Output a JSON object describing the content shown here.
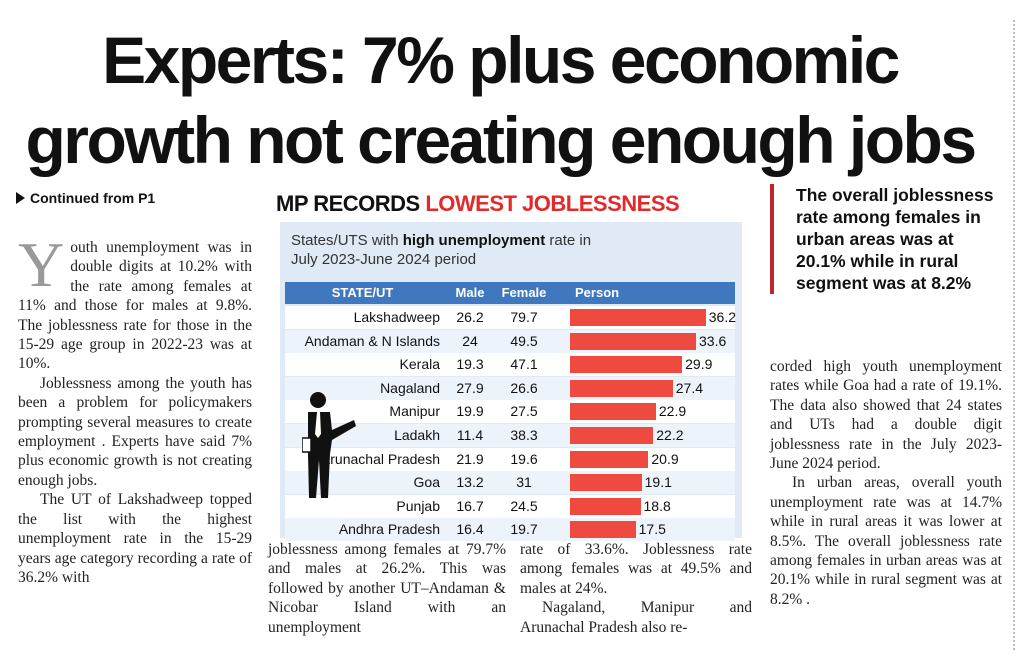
{
  "headline": {
    "line1": "Experts: 7% plus economic",
    "line2": "growth not creating enough jobs"
  },
  "continued": "Continued from P1",
  "column1": {
    "dropcap": "Y",
    "p1": "outh unemployment was in double digits at 10.2% with the rate among females at 11% and those for males at 9.8%. The joblessness rate for those in the 15-29 age group in 2022-23 was at 10%.",
    "p2": "Joblessness among the youth has been a problem for policymakers prompting several measures to create employment . Experts have said 7% plus economic growth is not creating enough jobs.",
    "p3": "The UT of Lakshadweep topped the list with the highest unemployment rate in the 15-29 years age category recording a rate of 36.2% with"
  },
  "column2": {
    "p1": "joblessness among females at 79.7% and males at 26.2%. This was followed by another UT–Andaman & Nicobar Island with an unemployment"
  },
  "column3": {
    "p1": "rate of 33.6%. Joblessness rate among females was at 49.5% and males at 24%.",
    "p2": "Nagaland, Manipur and Arunachal Pradesh also re-"
  },
  "pullquote": "The overall joblessness rate among females in urban areas was at 20.1% while in rural segment was at 8.2%",
  "column4": {
    "p1": "corded high youth unemployment rates while Goa had a rate of 19.1%. The data also showed that 24 states and UTs had a double digit joblessness rate in the July 2023-June 2024 period.",
    "p2": "In urban areas, overall youth unemployment rate was at 14.7% while in rural areas it was lower at 8.5%. The overall joblessness rate among females in urban areas was at 20.1% while in rural segment was at 8.2% ."
  },
  "infobox": {
    "title_part1": "MP RECORDS ",
    "title_part2": "LOWEST JOBLESSNESS",
    "subtitle_pre": "States/UTS with ",
    "subtitle_bold": "high unemployment",
    "subtitle_post": " rate in",
    "subtitle_line2": "July 2023-June 2024 period",
    "colors": {
      "header": "#3f78be",
      "bar": "#ef4a40",
      "title_accent": "#e12a2a",
      "panel": "#dfeaf6"
    }
  },
  "chart_data": {
    "type": "table",
    "columns": [
      "STATE/UT",
      "Male",
      "Female",
      "Person"
    ],
    "rows": [
      {
        "state": "Lakshadweep",
        "male": "26.2",
        "female": "79.7",
        "person": 36.2
      },
      {
        "state": "Andaman & N Islands",
        "male": "24",
        "female": "49.5",
        "person": 33.6
      },
      {
        "state": "Kerala",
        "male": "19.3",
        "female": "47.1",
        "person": 29.9
      },
      {
        "state": "Nagaland",
        "male": "27.9",
        "female": "26.6",
        "person": 27.4
      },
      {
        "state": "Manipur",
        "male": "19.9",
        "female": "27.5",
        "person": 22.9
      },
      {
        "state": "Ladakh",
        "male": "11.4",
        "female": "38.3",
        "person": 22.2
      },
      {
        "state": "Arunachal Pradesh",
        "male": "21.9",
        "female": "19.6",
        "person": 20.9
      },
      {
        "state": "Goa",
        "male": "13.2",
        "female": "31",
        "person": 19.1
      },
      {
        "state": "Punjab",
        "male": "16.7",
        "female": "24.5",
        "person": 18.8
      },
      {
        "state": "Andhra Pradesh",
        "male": "16.4",
        "female": "19.7",
        "person": 17.5
      }
    ]
  }
}
